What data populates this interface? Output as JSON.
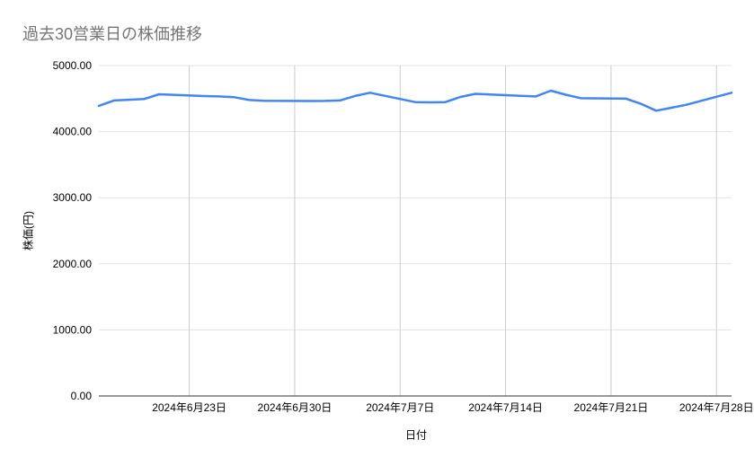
{
  "chart": {
    "title": "過去30営業日の株価推移",
    "xlabel": "日付",
    "ylabel": "株価(円)"
  },
  "colors": {
    "background": "#ffffff",
    "title_text": "#757575",
    "axis_text": "#000000",
    "grid_horizontal": "#e3e3e3",
    "grid_vertical": "#cccccc",
    "axis_line": "#333333",
    "series_line": "#4285f4"
  },
  "chart_data": {
    "type": "line",
    "title": "過去30営業日の株価推移",
    "xlabel": "日付",
    "ylabel": "株価(円)",
    "grid": true,
    "legend": "none",
    "markers": "none",
    "ylim": [
      0,
      5000
    ],
    "xlim_days": [
      0,
      42
    ],
    "y_ticks": [
      {
        "label": "0.00",
        "value": 0
      },
      {
        "label": "1000.00",
        "value": 1000
      },
      {
        "label": "2000.00",
        "value": 2000
      },
      {
        "label": "3000.00",
        "value": 3000
      },
      {
        "label": "4000.00",
        "value": 4000
      },
      {
        "label": "5000.00",
        "value": 5000
      }
    ],
    "x_ticks": [
      {
        "label": "2024年6月23日",
        "day": 6
      },
      {
        "label": "2024年6月30日",
        "day": 13
      },
      {
        "label": "2024年7月7日",
        "day": 20
      },
      {
        "label": "2024年7月14日",
        "day": 27
      },
      {
        "label": "2024年7月21日",
        "day": 34
      },
      {
        "label": "2024年7月28日",
        "day": 41
      }
    ],
    "series": [
      {
        "name": "株価",
        "color": "#4285f4",
        "points": [
          {
            "date": "2024-06-17",
            "day": 0,
            "value": 4390
          },
          {
            "date": "2024-06-18",
            "day": 1,
            "value": 4472
          },
          {
            "date": "2024-06-19",
            "day": 2,
            "value": 4483
          },
          {
            "date": "2024-06-20",
            "day": 3,
            "value": 4493
          },
          {
            "date": "2024-06-21",
            "day": 4,
            "value": 4565
          },
          {
            "date": "2024-06-24",
            "day": 7,
            "value": 4538
          },
          {
            "date": "2024-06-25",
            "day": 8,
            "value": 4532
          },
          {
            "date": "2024-06-26",
            "day": 9,
            "value": 4520
          },
          {
            "date": "2024-06-27",
            "day": 10,
            "value": 4478
          },
          {
            "date": "2024-06-28",
            "day": 11,
            "value": 4466
          },
          {
            "date": "2024-07-01",
            "day": 14,
            "value": 4463
          },
          {
            "date": "2024-07-02",
            "day": 15,
            "value": 4464
          },
          {
            "date": "2024-07-03",
            "day": 16,
            "value": 4472
          },
          {
            "date": "2024-07-04",
            "day": 17,
            "value": 4540
          },
          {
            "date": "2024-07-05",
            "day": 18,
            "value": 4588
          },
          {
            "date": "2024-07-08",
            "day": 21,
            "value": 4447
          },
          {
            "date": "2024-07-09",
            "day": 22,
            "value": 4443
          },
          {
            "date": "2024-07-10",
            "day": 23,
            "value": 4447
          },
          {
            "date": "2024-07-11",
            "day": 24,
            "value": 4525
          },
          {
            "date": "2024-07-12",
            "day": 25,
            "value": 4572
          },
          {
            "date": "2024-07-15",
            "day": 28,
            "value": 4542
          },
          {
            "date": "2024-07-16",
            "day": 29,
            "value": 4533
          },
          {
            "date": "2024-07-17",
            "day": 30,
            "value": 4620
          },
          {
            "date": "2024-07-18",
            "day": 31,
            "value": 4558
          },
          {
            "date": "2024-07-19",
            "day": 32,
            "value": 4506
          },
          {
            "date": "2024-07-22",
            "day": 35,
            "value": 4498
          },
          {
            "date": "2024-07-23",
            "day": 36,
            "value": 4420
          },
          {
            "date": "2024-07-24",
            "day": 37,
            "value": 4316
          },
          {
            "date": "2024-07-25",
            "day": 38,
            "value": 4362
          },
          {
            "date": "2024-07-26",
            "day": 39,
            "value": 4406
          },
          {
            "date": "2024-07-29",
            "day": 42,
            "value": 4588
          }
        ]
      }
    ]
  }
}
